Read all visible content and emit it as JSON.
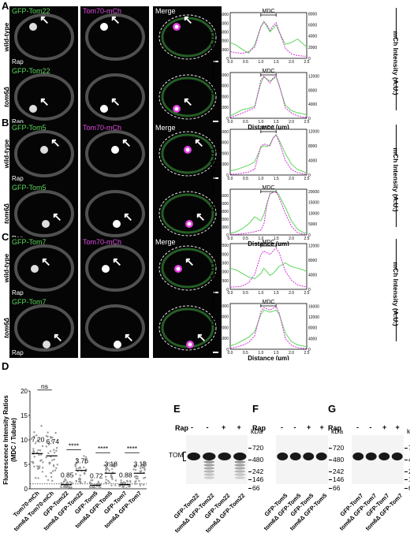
{
  "panels": {
    "A": {
      "letter": "A",
      "protein": "GFP-Tom22",
      "tom70": "Tom70-mCh",
      "merge": "Merge",
      "rows": [
        "wild-type",
        "tom6Δ"
      ],
      "rap": "Rap",
      "plots": [
        {
          "type": "line",
          "mdc": "MDC",
          "x": [
            0,
            0.2,
            0.4,
            0.6,
            0.8,
            1.0,
            1.1,
            1.2,
            1.3,
            1.4,
            1.5,
            1.6,
            1.8,
            2.0,
            2.2,
            2.4,
            2.5
          ],
          "gfp": [
            1800,
            1500,
            1000,
            600,
            1500,
            3600,
            4200,
            3600,
            3000,
            3400,
            3800,
            3000,
            1600,
            1800,
            2200,
            1600,
            1300
          ],
          "mch": [
            1200,
            1000,
            900,
            1200,
            2000,
            5600,
            6500,
            6000,
            5000,
            5800,
            6400,
            4800,
            1800,
            800,
            500,
            400,
            400
          ],
          "gfp_ticks": [
            "0",
            "1000",
            "2000",
            "3000",
            "4000",
            "5000"
          ],
          "mch_ticks": [
            "0",
            "2000",
            "4000",
            "6000",
            "8000"
          ],
          "gfp_max": 5200,
          "mch_max": 8200
        },
        {
          "type": "line",
          "mdc": "MDC",
          "x": [
            0,
            0.2,
            0.4,
            0.6,
            0.8,
            1.0,
            1.1,
            1.2,
            1.3,
            1.4,
            1.5,
            1.6,
            1.8,
            2.0,
            2.2,
            2.4,
            2.5
          ],
          "gfp": [
            200,
            500,
            800,
            900,
            1100,
            3200,
            3800,
            3600,
            3400,
            3600,
            3800,
            3000,
            1200,
            700,
            500,
            400,
            300
          ],
          "mch": [
            200,
            800,
            1500,
            2200,
            3000,
            10800,
            12000,
            11000,
            10000,
            11500,
            12000,
            9500,
            3000,
            1500,
            700,
            300,
            200
          ],
          "gfp_ticks": [
            "0",
            "1000",
            "2000",
            "3000",
            "4000"
          ],
          "mch_ticks": [
            "0",
            "4000",
            "8000",
            "12000"
          ],
          "gfp_max": 4200,
          "mch_max": 13000
        }
      ]
    },
    "B": {
      "letter": "B",
      "protein": "GFP-Tom5",
      "tom70": "Tom70-mCh",
      "merge": "Merge",
      "rows": [
        "wild-type",
        "tom6Δ"
      ],
      "rap": "Rap",
      "plots": [
        {
          "type": "line",
          "mdc": "MDC",
          "x": [
            0,
            0.2,
            0.4,
            0.6,
            0.8,
            1.0,
            1.1,
            1.2,
            1.3,
            1.4,
            1.5,
            1.6,
            1.8,
            2.0,
            2.2,
            2.4,
            2.5
          ],
          "gfp": [
            400,
            500,
            700,
            900,
            1200,
            2500,
            2700,
            2600,
            2800,
            3400,
            3700,
            3200,
            2000,
            1000,
            500,
            300,
            200
          ],
          "mch": [
            200,
            300,
            500,
            800,
            1600,
            7800,
            8500,
            8200,
            8000,
            10000,
            11000,
            9000,
            4000,
            1500,
            600,
            300,
            200
          ],
          "gfp_ticks": [
            "0",
            "1000",
            "2000",
            "3000",
            "4000"
          ],
          "mch_ticks": [
            "0",
            "4000",
            "8000",
            "12000"
          ],
          "gfp_max": 4200,
          "mch_max": 12500
        },
        {
          "type": "line",
          "mdc": "MDC",
          "x": [
            0,
            0.2,
            0.4,
            0.6,
            0.8,
            1.0,
            1.1,
            1.2,
            1.3,
            1.4,
            1.5,
            1.6,
            1.8,
            2.0,
            2.2,
            2.4,
            2.5
          ],
          "gfp": [
            200,
            400,
            800,
            1400,
            2300,
            1800,
            2600,
            4000,
            5200,
            5400,
            5600,
            5000,
            3500,
            1800,
            700,
            300,
            200
          ],
          "mch": [
            200,
            300,
            500,
            900,
            1500,
            2200,
            5000,
            14000,
            19000,
            19500,
            20000,
            17000,
            10000,
            4000,
            1000,
            300,
            200
          ],
          "gfp_ticks": [
            "0",
            "1000",
            "2000",
            "3000",
            "4000",
            "5000"
          ],
          "mch_ticks": [
            "0",
            "5000",
            "10000",
            "15000",
            "20000"
          ],
          "gfp_max": 5800,
          "mch_max": 21000
        }
      ]
    },
    "C": {
      "letter": "C",
      "protein": "GFP-Tom7",
      "tom70": "Tom70-mCh",
      "merge": "Merge",
      "rows": [
        "wild-type",
        "tom6Δ"
      ],
      "rap": "Rap",
      "plots": [
        {
          "type": "line",
          "mdc": "MDC",
          "x": [
            0,
            0.2,
            0.4,
            0.6,
            0.8,
            1.0,
            1.1,
            1.2,
            1.3,
            1.4,
            1.5,
            1.6,
            1.8,
            2.0,
            2.2,
            2.4,
            2.5
          ],
          "gfp": [
            1200,
            1100,
            900,
            700,
            600,
            900,
            1200,
            1000,
            800,
            900,
            1100,
            1300,
            1500,
            1300,
            1200,
            1100,
            1000
          ],
          "mch": [
            600,
            700,
            900,
            1800,
            4000,
            9500,
            10500,
            10000,
            9500,
            10500,
            11200,
            10000,
            5000,
            2500,
            1200,
            800,
            600
          ],
          "gfp_ticks": [
            "0",
            "500",
            "1000",
            "1500",
            "2000",
            "2500"
          ],
          "mch_ticks": [
            "0",
            "4000",
            "8000",
            "12000"
          ],
          "gfp_max": 2600,
          "mch_max": 12500
        },
        {
          "type": "line",
          "mdc": "MDC",
          "x": [
            0,
            0.2,
            0.4,
            0.6,
            0.8,
            1.0,
            1.1,
            1.2,
            1.3,
            1.4,
            1.5,
            1.6,
            1.8,
            2.0,
            2.2,
            2.4,
            2.5
          ],
          "gfp": [
            300,
            500,
            800,
            1100,
            1600,
            3200,
            3600,
            3500,
            3400,
            3500,
            3600,
            3200,
            1500,
            700,
            400,
            300,
            200
          ],
          "mch": [
            400,
            800,
            1500,
            2500,
            5000,
            14000,
            15500,
            15000,
            14500,
            15200,
            15800,
            13500,
            4000,
            1500,
            600,
            300,
            200
          ],
          "gfp_ticks": [
            "0",
            "1000",
            "2000",
            "3000",
            "4000"
          ],
          "mch_ticks": [
            "0",
            "4000",
            "8000",
            "12000",
            "16000"
          ],
          "gfp_max": 4200,
          "mch_max": 17000
        }
      ]
    }
  },
  "plot_axes": {
    "xlabel": "Distance (µm)",
    "gfp_ylabel": "GFP Intensity (A.U.)",
    "mch_ylabel": "mCh Intensity (A.U.)",
    "x_ticks": [
      "0.0",
      "0.5",
      "1.0",
      "1.5",
      "2.0",
      "2.5"
    ]
  },
  "panel_D": {
    "letter": "D",
    "ylabel_line1": "Fluorescence Intensity Ratios",
    "ylabel_line2": "(MDC / Tubule)",
    "y_ticks": [
      "0",
      "5",
      "10",
      "15",
      "20"
    ],
    "chart_data": {
      "type": "scatter",
      "categories": [
        "Tom70-mCh",
        "tom6Δ Tom70-mCh",
        "GFP-Tom22",
        "tom6Δ GFP-Tom22",
        "GFP-Tom5",
        "tom6Δ GFP-Tom5",
        "GFP-Tom7",
        "tom6Δ GFP-Tom7"
      ],
      "means": [
        7.2,
        6.74,
        0.85,
        3.76,
        0.72,
        3.18,
        0.88,
        3.18
      ],
      "mean_labels": [
        "7.20",
        "6.74",
        "0.85",
        "3.76",
        "0.72",
        "3.18",
        "0.88",
        "3.18"
      ],
      "ylim": [
        0,
        20
      ],
      "significance": [
        {
          "pair": [
            0,
            1
          ],
          "label": "ns"
        },
        {
          "pair": [
            2,
            3
          ],
          "label": "****"
        },
        {
          "pair": [
            4,
            5
          ],
          "label": "****"
        },
        {
          "pair": [
            6,
            7
          ],
          "label": "****"
        }
      ]
    }
  },
  "blots": [
    {
      "letter": "E",
      "rap": "Rap",
      "signs": [
        "-",
        "-",
        "+",
        "+"
      ],
      "tom_label": "TOM",
      "lanes": [
        "GFP-Tom22",
        "tom6Δ GFP-Tom22",
        "GFP-Tom22",
        "tom6Δ GFP-Tom22"
      ],
      "kda": "kDa",
      "markers": [
        "720",
        "480",
        "242",
        "146",
        "66"
      ]
    },
    {
      "letter": "F",
      "rap": "Rap",
      "signs": [
        "-",
        "-",
        "+",
        "+"
      ],
      "lanes": [
        "GFP-Tom5",
        "tom6Δ GFP-Tom5",
        "GFP-Tom5",
        "tom6Δ GFP-Tom5"
      ],
      "kda": "kDa",
      "markers": [
        "720",
        "480",
        "242",
        "146",
        "66"
      ]
    },
    {
      "letter": "G",
      "rap": "Rap",
      "signs": [
        "-",
        "-",
        "+",
        "+"
      ],
      "lanes": [
        "GFP-Tom7",
        "tom6Δ GFP-Tom7",
        "GFP-Tom7",
        "tom6Δ GFP-Tom7"
      ],
      "kda": "kDa",
      "markers": [
        "720",
        "480",
        "242",
        "146",
        "66"
      ]
    }
  ]
}
